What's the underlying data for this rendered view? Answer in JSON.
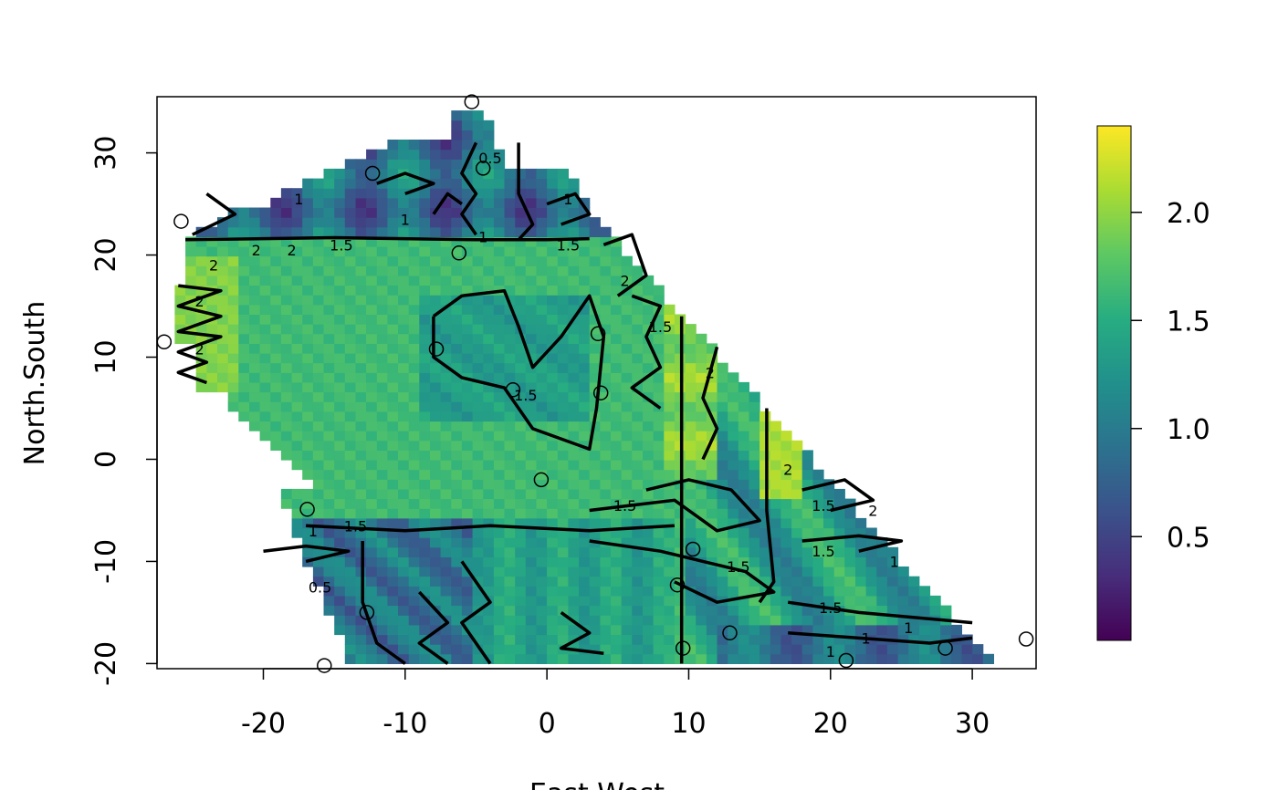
{
  "chart_data": {
    "type": "heatmap",
    "xlabel": "East.West",
    "ylabel": "North.South",
    "xlim": [
      -27.5,
      34.5
    ],
    "ylim": [
      -20.5,
      35.5
    ],
    "x_ticks": [
      -20,
      -10,
      0,
      10,
      20,
      30
    ],
    "y_ticks": [
      -20,
      -10,
      0,
      10,
      20,
      30
    ],
    "x_tick_labels": [
      "-20",
      "-10",
      "0",
      "10",
      "20",
      "30"
    ],
    "y_tick_labels": [
      "-20",
      "-10",
      "0",
      "10",
      "20",
      "30"
    ],
    "colorbar": {
      "min": 0.02,
      "max": 2.4,
      "ticks": [
        0.5,
        1.0,
        1.5,
        2.0
      ],
      "tick_labels": [
        "0.5",
        "1.0",
        "1.5",
        "2.0"
      ],
      "palette": "viridis"
    },
    "colors": {
      "viridis": [
        "#440154",
        "#472D7B",
        "#3B528B",
        "#2C728E",
        "#21908C",
        "#27AD81",
        "#5DC863",
        "#AADC32",
        "#FDE725"
      ]
    },
    "contour_levels": [
      0.5,
      1,
      1.5,
      2
    ],
    "contour_labels": [
      {
        "x": -17.5,
        "y": 25.5,
        "text": "1"
      },
      {
        "x": -10.0,
        "y": 23.5,
        "text": "1"
      },
      {
        "x": -14.5,
        "y": 21.0,
        "text": "1.5"
      },
      {
        "x": -20.5,
        "y": 20.5,
        "text": "2"
      },
      {
        "x": -18.0,
        "y": 20.5,
        "text": "2"
      },
      {
        "x": -23.5,
        "y": 19.0,
        "text": "2"
      },
      {
        "x": -24.5,
        "y": 15.5,
        "text": "2"
      },
      {
        "x": -24.5,
        "y": 10.8,
        "text": "2"
      },
      {
        "x": -4.0,
        "y": 29.5,
        "text": "0.5"
      },
      {
        "x": -4.5,
        "y": 21.8,
        "text": "1"
      },
      {
        "x": 1.5,
        "y": 25.5,
        "text": "1"
      },
      {
        "x": 1.5,
        "y": 21.0,
        "text": "1.5"
      },
      {
        "x": 5.5,
        "y": 17.5,
        "text": "2"
      },
      {
        "x": 8.0,
        "y": 13.0,
        "text": "1.5"
      },
      {
        "x": 11.5,
        "y": 8.5,
        "text": "2"
      },
      {
        "x": -1.5,
        "y": 6.3,
        "text": "1.5"
      },
      {
        "x": 17.0,
        "y": -1.0,
        "text": "2"
      },
      {
        "x": 5.5,
        "y": -4.5,
        "text": "1.5"
      },
      {
        "x": 19.5,
        "y": -4.5,
        "text": "1.5"
      },
      {
        "x": 23.0,
        "y": -5.0,
        "text": "2"
      },
      {
        "x": -16.5,
        "y": -7.0,
        "text": "1"
      },
      {
        "x": -13.5,
        "y": -6.5,
        "text": "1.5"
      },
      {
        "x": 19.5,
        "y": -9.0,
        "text": "1.5"
      },
      {
        "x": 13.5,
        "y": -10.5,
        "text": "1.5"
      },
      {
        "x": 24.5,
        "y": -10.0,
        "text": "1"
      },
      {
        "x": -16.0,
        "y": -12.5,
        "text": "0.5"
      },
      {
        "x": 20.0,
        "y": -14.5,
        "text": "1.5"
      },
      {
        "x": 25.5,
        "y": -16.5,
        "text": "1"
      },
      {
        "x": 22.5,
        "y": -17.5,
        "text": "1"
      },
      {
        "x": 20.0,
        "y": -18.8,
        "text": "1"
      }
    ],
    "points": [
      {
        "x": -5.3,
        "y": 35.0
      },
      {
        "x": -4.5,
        "y": 28.5
      },
      {
        "x": -12.3,
        "y": 28.0
      },
      {
        "x": -25.8,
        "y": 23.3
      },
      {
        "x": -6.2,
        "y": 20.2
      },
      {
        "x": -27.0,
        "y": 11.5
      },
      {
        "x": -7.8,
        "y": 10.8
      },
      {
        "x": 3.6,
        "y": 12.3
      },
      {
        "x": -2.4,
        "y": 6.8
      },
      {
        "x": 3.8,
        "y": 6.5
      },
      {
        "x": -0.4,
        "y": -2.0
      },
      {
        "x": -16.9,
        "y": -4.9
      },
      {
        "x": 10.3,
        "y": -8.8
      },
      {
        "x": 9.2,
        "y": -12.3
      },
      {
        "x": -12.7,
        "y": -15.0
      },
      {
        "x": 12.9,
        "y": -17.0
      },
      {
        "x": 9.6,
        "y": -18.5
      },
      {
        "x": -15.7,
        "y": -20.2
      },
      {
        "x": 21.1,
        "y": -19.7
      },
      {
        "x": 28.1,
        "y": -18.5
      },
      {
        "x": 33.8,
        "y": -17.6
      }
    ]
  }
}
